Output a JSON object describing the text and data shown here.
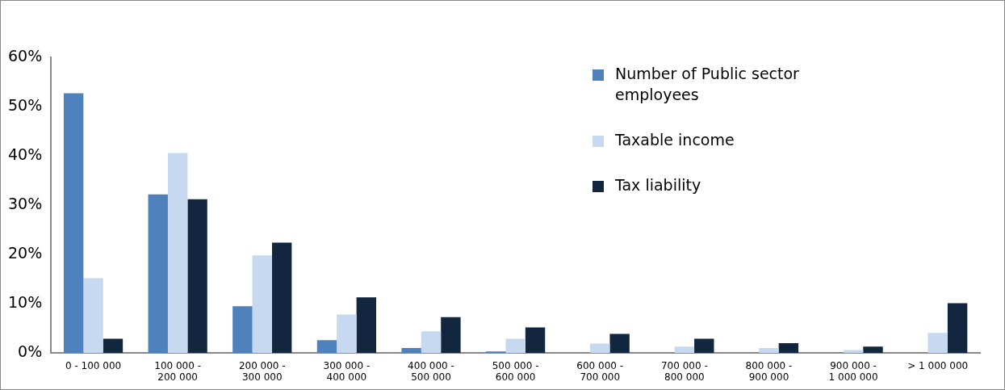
{
  "chart_data": {
    "type": "bar",
    "categories": [
      "0 - 100 000",
      "100 000 - 200 000",
      "200 000 - 300 000",
      "300 000 - 400 000",
      "400 000 - 500 000",
      "500 000 - 600 000",
      "600 000 - 700 000",
      "700 000 - 800 000",
      "800 000 - 900 000",
      "900 000 - 1 000 000",
      "> 1 000 000"
    ],
    "series": [
      {
        "name": "Number of Public sector employees",
        "color": "#4f81bd",
        "values": [
          52.7,
          32.2,
          9.5,
          2.6,
          1.0,
          0.3,
          null,
          null,
          null,
          0,
          0
        ]
      },
      {
        "name": "Taxable income",
        "color": "#c6d9f1",
        "values": [
          15.2,
          40.6,
          19.8,
          7.8,
          4.4,
          2.9,
          1.9,
          1.3,
          1.0,
          0.6,
          4.1
        ]
      },
      {
        "name": "Tax liability",
        "color": "#13263f",
        "values": [
          2.9,
          31.2,
          22.4,
          11.3,
          7.3,
          5.2,
          3.9,
          2.9,
          2.0,
          1.3,
          10.1
        ]
      }
    ],
    "ylim": [
      0,
      60
    ],
    "yticks": [
      {
        "value": 0,
        "label": "0%"
      },
      {
        "value": 10,
        "label": "10%"
      },
      {
        "value": 20,
        "label": "20%"
      },
      {
        "value": 30,
        "label": "30%"
      },
      {
        "value": 40,
        "label": "40%"
      },
      {
        "value": 50,
        "label": "50%"
      },
      {
        "value": 60,
        "label": "60%"
      }
    ],
    "grid": false,
    "legend": "top right"
  }
}
